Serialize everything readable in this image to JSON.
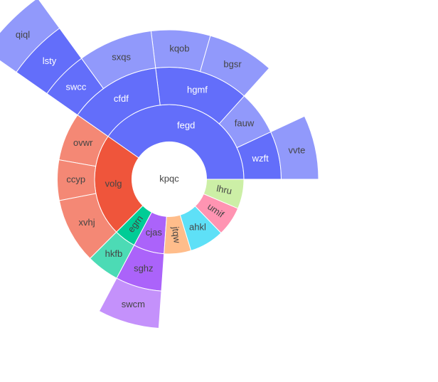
{
  "chart_data": {
    "type": "sunburst",
    "start_angle": 0,
    "nodes": [
      {
        "name": "kpqc",
        "parent": null,
        "value": 360
      },
      {
        "name": "fegd",
        "parent": "kpqc",
        "value": 145,
        "color": "#636efa"
      },
      {
        "name": "wzft",
        "parent": "fegd",
        "value": 25
      },
      {
        "name": "vvte",
        "parent": "wzft",
        "value": 25
      },
      {
        "name": "fauw",
        "parent": "fegd",
        "value": 23
      },
      {
        "name": "hgmf",
        "parent": "fegd",
        "value": 49
      },
      {
        "name": "bgsr",
        "parent": "hgmf",
        "value": 26
      },
      {
        "name": "kqob",
        "parent": "hgmf",
        "value": 23
      },
      {
        "name": "cfdf",
        "parent": "fegd",
        "value": 48
      },
      {
        "name": "sxqs",
        "parent": "cfdf",
        "value": 29
      },
      {
        "name": "swcc",
        "parent": "cfdf",
        "value": 19
      },
      {
        "name": "lsty",
        "parent": "swcc",
        "value": 19
      },
      {
        "name": "qiql",
        "parent": "lsty",
        "value": 19
      },
      {
        "name": "volg",
        "parent": "kpqc",
        "value": 80,
        "color": "#ef553b"
      },
      {
        "name": "ovwr",
        "parent": "volg",
        "value": 25
      },
      {
        "name": "ccyp",
        "parent": "volg",
        "value": 21
      },
      {
        "name": "xvhj",
        "parent": "volg",
        "value": 34
      },
      {
        "name": "egrn",
        "parent": "kpqc",
        "value": 17,
        "color": "#00cc96"
      },
      {
        "name": "hkfb",
        "parent": "egrn",
        "value": 17
      },
      {
        "name": "cjas",
        "parent": "kpqc",
        "value": 24,
        "color": "#ab63fa"
      },
      {
        "name": "sghz",
        "parent": "cjas",
        "value": 24
      },
      {
        "name": "swcm",
        "parent": "sghz",
        "value": 24
      },
      {
        "name": "jtqw",
        "parent": "kpqc",
        "value": 21,
        "color": "#ffa15a"
      },
      {
        "name": "ahkl",
        "parent": "kpqc",
        "value": 27,
        "color": "#19d3f3"
      },
      {
        "name": "umif",
        "parent": "kpqc",
        "value": 23,
        "color": "#ff6692"
      },
      {
        "name": "lhru",
        "parent": "kpqc",
        "value": 23,
        "color": "#b6e880"
      }
    ]
  }
}
